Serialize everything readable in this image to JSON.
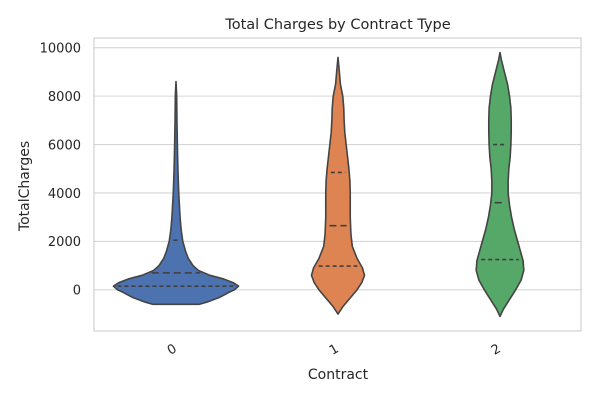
{
  "chart_data": {
    "type": "violin",
    "title": "Total Charges by Contract Type",
    "xlabel": "Contract",
    "ylabel": "TotalCharges",
    "categories": [
      "0",
      "1",
      "2"
    ],
    "yticks": [
      0,
      2000,
      4000,
      6000,
      8000,
      10000
    ],
    "ylim": [
      -1700,
      10400
    ],
    "grid": "horizontal",
    "colors": [
      "#4c72b0",
      "#dd8452",
      "#55a868"
    ],
    "violins": [
      {
        "category": "0",
        "color": "#4c72b0",
        "min": -600,
        "max": 8600,
        "quartiles": [
          150,
          700,
          2050
        ],
        "density": [
          [
            -600,
            0.34
          ],
          [
            -500,
            0.46
          ],
          [
            -300,
            0.65
          ],
          [
            -100,
            0.78
          ],
          [
            0,
            0.86
          ],
          [
            150,
            0.92
          ],
          [
            300,
            0.84
          ],
          [
            450,
            0.7
          ],
          [
            600,
            0.5
          ],
          [
            800,
            0.33
          ],
          [
            1000,
            0.25
          ],
          [
            1300,
            0.18
          ],
          [
            1600,
            0.14
          ],
          [
            2000,
            0.1
          ],
          [
            2500,
            0.075
          ],
          [
            3000,
            0.06
          ],
          [
            4000,
            0.04
          ],
          [
            5000,
            0.028
          ],
          [
            6000,
            0.02
          ],
          [
            7000,
            0.014
          ],
          [
            8000,
            0.01
          ],
          [
            8600,
            0.0
          ]
        ]
      },
      {
        "category": "1",
        "color": "#dd8452",
        "min": -1000,
        "max": 9600,
        "quartiles": [
          980,
          2650,
          4850
        ],
        "density": [
          [
            -1000,
            0.0
          ],
          [
            -700,
            0.07
          ],
          [
            -400,
            0.16
          ],
          [
            0,
            0.28
          ],
          [
            300,
            0.35
          ],
          [
            600,
            0.39
          ],
          [
            900,
            0.36
          ],
          [
            1300,
            0.28
          ],
          [
            1800,
            0.21
          ],
          [
            2300,
            0.19
          ],
          [
            3000,
            0.18
          ],
          [
            3500,
            0.18
          ],
          [
            4000,
            0.18
          ],
          [
            4500,
            0.175
          ],
          [
            5000,
            0.16
          ],
          [
            5500,
            0.14
          ],
          [
            6000,
            0.12
          ],
          [
            6500,
            0.1
          ],
          [
            7000,
            0.09
          ],
          [
            7500,
            0.085
          ],
          [
            8000,
            0.07
          ],
          [
            8500,
            0.035
          ],
          [
            9000,
            0.02
          ],
          [
            9600,
            0.0
          ]
        ]
      },
      {
        "category": "2",
        "color": "#55a868",
        "min": -1100,
        "max": 9800,
        "quartiles": [
          1250,
          3600,
          6000
        ],
        "density": [
          [
            -1100,
            0.0
          ],
          [
            -800,
            0.05
          ],
          [
            -400,
            0.14
          ],
          [
            0,
            0.23
          ],
          [
            400,
            0.31
          ],
          [
            800,
            0.35
          ],
          [
            1200,
            0.34
          ],
          [
            1600,
            0.3
          ],
          [
            2000,
            0.26
          ],
          [
            2500,
            0.21
          ],
          [
            3000,
            0.17
          ],
          [
            3500,
            0.14
          ],
          [
            4000,
            0.12
          ],
          [
            4500,
            0.12
          ],
          [
            5000,
            0.13
          ],
          [
            5500,
            0.15
          ],
          [
            6000,
            0.16
          ],
          [
            6500,
            0.165
          ],
          [
            7000,
            0.165
          ],
          [
            7500,
            0.16
          ],
          [
            8000,
            0.14
          ],
          [
            8500,
            0.11
          ],
          [
            9000,
            0.065
          ],
          [
            9500,
            0.02
          ],
          [
            9800,
            0.0
          ]
        ]
      }
    ]
  }
}
